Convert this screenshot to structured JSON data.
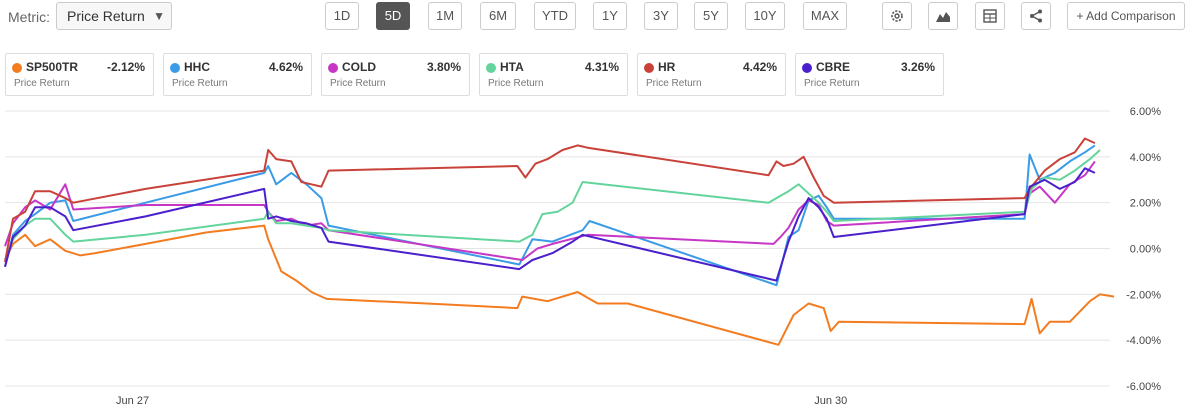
{
  "toolbar": {
    "metric_label": "Metric:",
    "metric_value": "Price Return",
    "ranges": [
      "1D",
      "5D",
      "1M",
      "6M",
      "YTD",
      "1Y",
      "3Y",
      "5Y",
      "10Y",
      "MAX"
    ],
    "active_range": "5D",
    "add_comparison": "+ Add Comparison",
    "icons": [
      "gear-icon",
      "mountain-chart-icon",
      "table-icon",
      "share-icon"
    ]
  },
  "legend_cards": [
    {
      "symbol": "SP500TR",
      "change": "-2.12%",
      "sub": "Price Return",
      "color": "#f47c20"
    },
    {
      "symbol": "HHC",
      "change": "4.62%",
      "sub": "Price Return",
      "color": "#3a9be6"
    },
    {
      "symbol": "COLD",
      "change": "3.80%",
      "sub": "Price Return",
      "color": "#c637c6"
    },
    {
      "symbol": "HTA",
      "change": "4.31%",
      "sub": "Price Return",
      "color": "#63d49b"
    },
    {
      "symbol": "HR",
      "change": "4.42%",
      "sub": "Price Return",
      "color": "#c9423a"
    },
    {
      "symbol": "CBRE",
      "change": "3.26%",
      "sub": "Price Return",
      "color": "#4a1fcc"
    }
  ],
  "chart_data": {
    "type": "line",
    "y_unit": "%",
    "ylim": [
      -6,
      6
    ],
    "y_ticks": [
      "6.00%",
      "4.00%",
      "2.00%",
      "0.00%",
      "-2.00%",
      "-4.00%",
      "-6.00%"
    ],
    "y_tick_values": [
      6,
      4,
      2,
      0,
      -2,
      -4,
      -6
    ],
    "grid": true,
    "x_range": [
      0,
      1100
    ],
    "x_ticks": [
      {
        "label": "Jun 27",
        "x": 127
      },
      {
        "label": "Jun 30",
        "x": 822
      }
    ],
    "series": [
      {
        "name": "SP500TR",
        "color": "#f47c20",
        "points": [
          [
            0,
            -0.5
          ],
          [
            8,
            0.2
          ],
          [
            20,
            0.6
          ],
          [
            30,
            0.1
          ],
          [
            45,
            0.4
          ],
          [
            60,
            -0.1
          ],
          [
            75,
            -0.3
          ],
          [
            90,
            -0.2
          ],
          [
            140,
            0.2
          ],
          [
            200,
            0.7
          ],
          [
            258,
            1.0
          ],
          [
            262,
            0.4
          ],
          [
            275,
            -1.0
          ],
          [
            290,
            -1.4
          ],
          [
            305,
            -1.9
          ],
          [
            320,
            -2.2
          ],
          [
            420,
            -2.4
          ],
          [
            510,
            -2.6
          ],
          [
            515,
            -2.1
          ],
          [
            540,
            -2.3
          ],
          [
            570,
            -1.9
          ],
          [
            590,
            -2.4
          ],
          [
            620,
            -2.4
          ],
          [
            770,
            -4.2
          ],
          [
            785,
            -2.9
          ],
          [
            800,
            -2.4
          ],
          [
            815,
            -2.6
          ],
          [
            822,
            -3.6
          ],
          [
            830,
            -3.2
          ],
          [
            1015,
            -3.3
          ],
          [
            1022,
            -2.2
          ],
          [
            1030,
            -3.7
          ],
          [
            1040,
            -3.2
          ],
          [
            1060,
            -3.2
          ],
          [
            1080,
            -2.3
          ],
          [
            1090,
            -2.0
          ],
          [
            1104,
            -2.1
          ]
        ]
      },
      {
        "name": "HHC",
        "color": "#3a9be6",
        "points": [
          [
            0,
            -0.8
          ],
          [
            8,
            0.6
          ],
          [
            20,
            1.2
          ],
          [
            30,
            1.5
          ],
          [
            45,
            2.0
          ],
          [
            60,
            2.1
          ],
          [
            68,
            1.2
          ],
          [
            140,
            2.0
          ],
          [
            258,
            3.3
          ],
          [
            262,
            3.6
          ],
          [
            270,
            2.8
          ],
          [
            285,
            3.3
          ],
          [
            300,
            2.8
          ],
          [
            315,
            2.2
          ],
          [
            322,
            1.0
          ],
          [
            512,
            -0.7
          ],
          [
            525,
            0.4
          ],
          [
            545,
            0.3
          ],
          [
            575,
            0.8
          ],
          [
            582,
            1.2
          ],
          [
            768,
            -1.6
          ],
          [
            780,
            0.5
          ],
          [
            790,
            0.8
          ],
          [
            800,
            2.1
          ],
          [
            810,
            2.3
          ],
          [
            818,
            1.8
          ],
          [
            825,
            1.3
          ],
          [
            1015,
            1.3
          ],
          [
            1020,
            4.1
          ],
          [
            1030,
            3.0
          ],
          [
            1045,
            3.3
          ],
          [
            1060,
            3.8
          ],
          [
            1075,
            4.2
          ],
          [
            1085,
            4.5
          ]
        ]
      },
      {
        "name": "COLD",
        "color": "#c637c6",
        "points": [
          [
            0,
            0.1
          ],
          [
            8,
            1.1
          ],
          [
            20,
            1.8
          ],
          [
            30,
            2.1
          ],
          [
            45,
            1.7
          ],
          [
            60,
            2.8
          ],
          [
            68,
            1.7
          ],
          [
            140,
            1.9
          ],
          [
            258,
            1.9
          ],
          [
            262,
            1.6
          ],
          [
            270,
            1.2
          ],
          [
            285,
            1.3
          ],
          [
            300,
            1.0
          ],
          [
            315,
            1.1
          ],
          [
            322,
            0.8
          ],
          [
            515,
            -0.5
          ],
          [
            530,
            0.0
          ],
          [
            545,
            0.2
          ],
          [
            580,
            0.6
          ],
          [
            765,
            0.2
          ],
          [
            772,
            0.5
          ],
          [
            780,
            0.9
          ],
          [
            790,
            1.7
          ],
          [
            800,
            2.1
          ],
          [
            810,
            1.9
          ],
          [
            818,
            1.2
          ],
          [
            825,
            1.0
          ],
          [
            1015,
            1.5
          ],
          [
            1020,
            2.4
          ],
          [
            1030,
            2.7
          ],
          [
            1045,
            2.0
          ],
          [
            1060,
            2.8
          ],
          [
            1075,
            3.2
          ],
          [
            1085,
            3.8
          ]
        ]
      },
      {
        "name": "HTA",
        "color": "#63d49b",
        "points": [
          [
            0,
            -0.5
          ],
          [
            8,
            0.4
          ],
          [
            20,
            1.0
          ],
          [
            30,
            1.3
          ],
          [
            45,
            1.3
          ],
          [
            60,
            0.6
          ],
          [
            68,
            0.3
          ],
          [
            140,
            0.6
          ],
          [
            258,
            1.3
          ],
          [
            262,
            1.6
          ],
          [
            270,
            1.1
          ],
          [
            285,
            1.1
          ],
          [
            300,
            1.0
          ],
          [
            315,
            0.9
          ],
          [
            322,
            0.8
          ],
          [
            512,
            0.3
          ],
          [
            525,
            0.6
          ],
          [
            535,
            1.5
          ],
          [
            550,
            1.6
          ],
          [
            565,
            2.0
          ],
          [
            575,
            2.9
          ],
          [
            760,
            2.0
          ],
          [
            768,
            2.2
          ],
          [
            780,
            2.5
          ],
          [
            790,
            2.8
          ],
          [
            800,
            2.4
          ],
          [
            810,
            2.0
          ],
          [
            818,
            1.6
          ],
          [
            825,
            1.2
          ],
          [
            1015,
            1.6
          ],
          [
            1022,
            2.6
          ],
          [
            1035,
            3.1
          ],
          [
            1050,
            3.0
          ],
          [
            1065,
            3.4
          ],
          [
            1080,
            3.9
          ],
          [
            1090,
            4.3
          ]
        ]
      },
      {
        "name": "HR",
        "color": "#c9423a",
        "points": [
          [
            0,
            -0.6
          ],
          [
            8,
            1.3
          ],
          [
            20,
            1.6
          ],
          [
            30,
            2.5
          ],
          [
            45,
            2.5
          ],
          [
            60,
            2.2
          ],
          [
            68,
            2.0
          ],
          [
            140,
            2.6
          ],
          [
            258,
            3.4
          ],
          [
            262,
            4.3
          ],
          [
            270,
            3.9
          ],
          [
            285,
            3.8
          ],
          [
            295,
            2.9
          ],
          [
            305,
            2.8
          ],
          [
            315,
            2.7
          ],
          [
            322,
            3.4
          ],
          [
            510,
            3.6
          ],
          [
            518,
            3.1
          ],
          [
            528,
            3.7
          ],
          [
            540,
            3.9
          ],
          [
            555,
            4.3
          ],
          [
            570,
            4.5
          ],
          [
            580,
            4.4
          ],
          [
            760,
            3.2
          ],
          [
            768,
            3.8
          ],
          [
            775,
            3.6
          ],
          [
            785,
            3.7
          ],
          [
            795,
            4.0
          ],
          [
            805,
            3.1
          ],
          [
            815,
            2.3
          ],
          [
            825,
            2.0
          ],
          [
            1015,
            2.2
          ],
          [
            1020,
            2.6
          ],
          [
            1035,
            3.4
          ],
          [
            1050,
            3.9
          ],
          [
            1065,
            4.2
          ],
          [
            1075,
            4.8
          ],
          [
            1085,
            4.6
          ]
        ]
      },
      {
        "name": "CBRE",
        "color": "#4a1fcc",
        "points": [
          [
            0,
            -0.8
          ],
          [
            8,
            0.5
          ],
          [
            20,
            1.0
          ],
          [
            30,
            1.8
          ],
          [
            45,
            1.8
          ],
          [
            60,
            1.4
          ],
          [
            68,
            0.8
          ],
          [
            140,
            1.4
          ],
          [
            258,
            2.6
          ],
          [
            262,
            1.3
          ],
          [
            270,
            1.4
          ],
          [
            285,
            1.2
          ],
          [
            300,
            1.1
          ],
          [
            315,
            0.9
          ],
          [
            322,
            0.3
          ],
          [
            512,
            -0.9
          ],
          [
            525,
            -0.5
          ],
          [
            545,
            -0.2
          ],
          [
            565,
            0.3
          ],
          [
            575,
            0.6
          ],
          [
            768,
            -1.4
          ],
          [
            780,
            0.3
          ],
          [
            790,
            1.4
          ],
          [
            800,
            2.2
          ],
          [
            810,
            1.8
          ],
          [
            818,
            1.3
          ],
          [
            825,
            0.5
          ],
          [
            1015,
            1.5
          ],
          [
            1020,
            2.7
          ],
          [
            1035,
            3.0
          ],
          [
            1050,
            2.6
          ],
          [
            1065,
            2.9
          ],
          [
            1075,
            3.5
          ],
          [
            1085,
            3.3
          ]
        ]
      }
    ]
  }
}
